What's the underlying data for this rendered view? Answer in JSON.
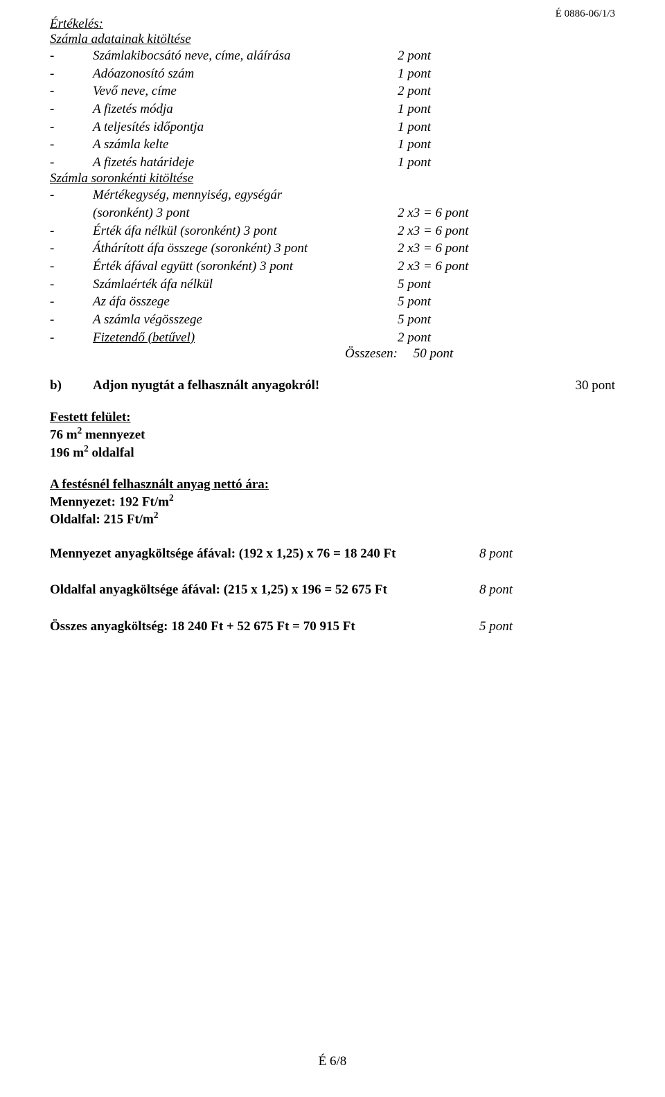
{
  "header_code": "É 0886-06/1/3",
  "eval_title": "Értékelés:",
  "sec1_title": "Számla adatainak kitöltése",
  "lines1": [
    {
      "t": "Számlakibocsátó neve, címe, aláírása",
      "p": "2 pont"
    },
    {
      "t": "Adóazonosító szám",
      "p": "1 pont"
    },
    {
      "t": "Vevő neve, címe",
      "p": "2 pont"
    },
    {
      "t": "A fizetés módja",
      "p": "1 pont"
    },
    {
      "t": "A teljesítés időpontja",
      "p": "1 pont"
    },
    {
      "t": "A számla kelte",
      "p": "1 pont"
    },
    {
      "t": "A fizetés határideje",
      "p": "1 pont"
    }
  ],
  "sec2_title": "Számla soronkénti kitöltése",
  "lines2a": [
    {
      "t": "Mértékegység, mennyiség, egységár"
    },
    {
      "t": "(soronként)    3 pont",
      "p": "2 x3 = 6 pont",
      "indent": true
    }
  ],
  "lines2b": [
    {
      "t": "Érték áfa nélkül (soronként) 3 pont",
      "p": "2 x3 = 6 pont"
    },
    {
      "t": "Áthárított áfa összege (soronként) 3 pont",
      "p": "2 x3 = 6 pont"
    },
    {
      "t": "Érték áfával együtt (soronként) 3 pont",
      "p": "2 x3 = 6 pont"
    },
    {
      "t": "Számlaérték áfa nélkül",
      "p": "5 pont"
    },
    {
      "t": "Az áfa összege",
      "p": "5 pont"
    },
    {
      "t": "A számla végösszege",
      "p": "5 pont"
    },
    {
      "t": "Fizetendő (betűvel)",
      "p": "2 pont",
      "u": true
    }
  ],
  "summary_label": "Összesen:",
  "summary_value": "50 pont",
  "b_marker": "b)",
  "b_text": "Adjon nyugtát a felhasznált anyagokról!",
  "b_pts": "30 pont",
  "festett_title": "Festett felület:",
  "festett_l1a": "76 m",
  "festett_l1b": " mennyezet",
  "festett_l2a": "196 m",
  "festett_l2b": " oldalfal",
  "anyag_title": "A festésnél felhasznált anyag nettó ára:",
  "anyag_l1": "Mennyezet: 192 Ft/m",
  "anyag_l2": "Oldalfal: 215 Ft/m",
  "calc1_t": "Mennyezet anyagköltsége áfával: (192 x 1,25) x 76 = 18 240 Ft",
  "calc1_p": "8 pont",
  "calc2_t": "Oldalfal anyagköltsége áfával: (215 x 1,25) x 196 = 52 675 Ft",
  "calc2_p": "8 pont",
  "calc3_t": "Összes anyagköltség: 18 240 Ft + 52 675 Ft = 70 915 Ft",
  "calc3_p": "5 pont",
  "footer": "É 6/8",
  "sq": "2"
}
